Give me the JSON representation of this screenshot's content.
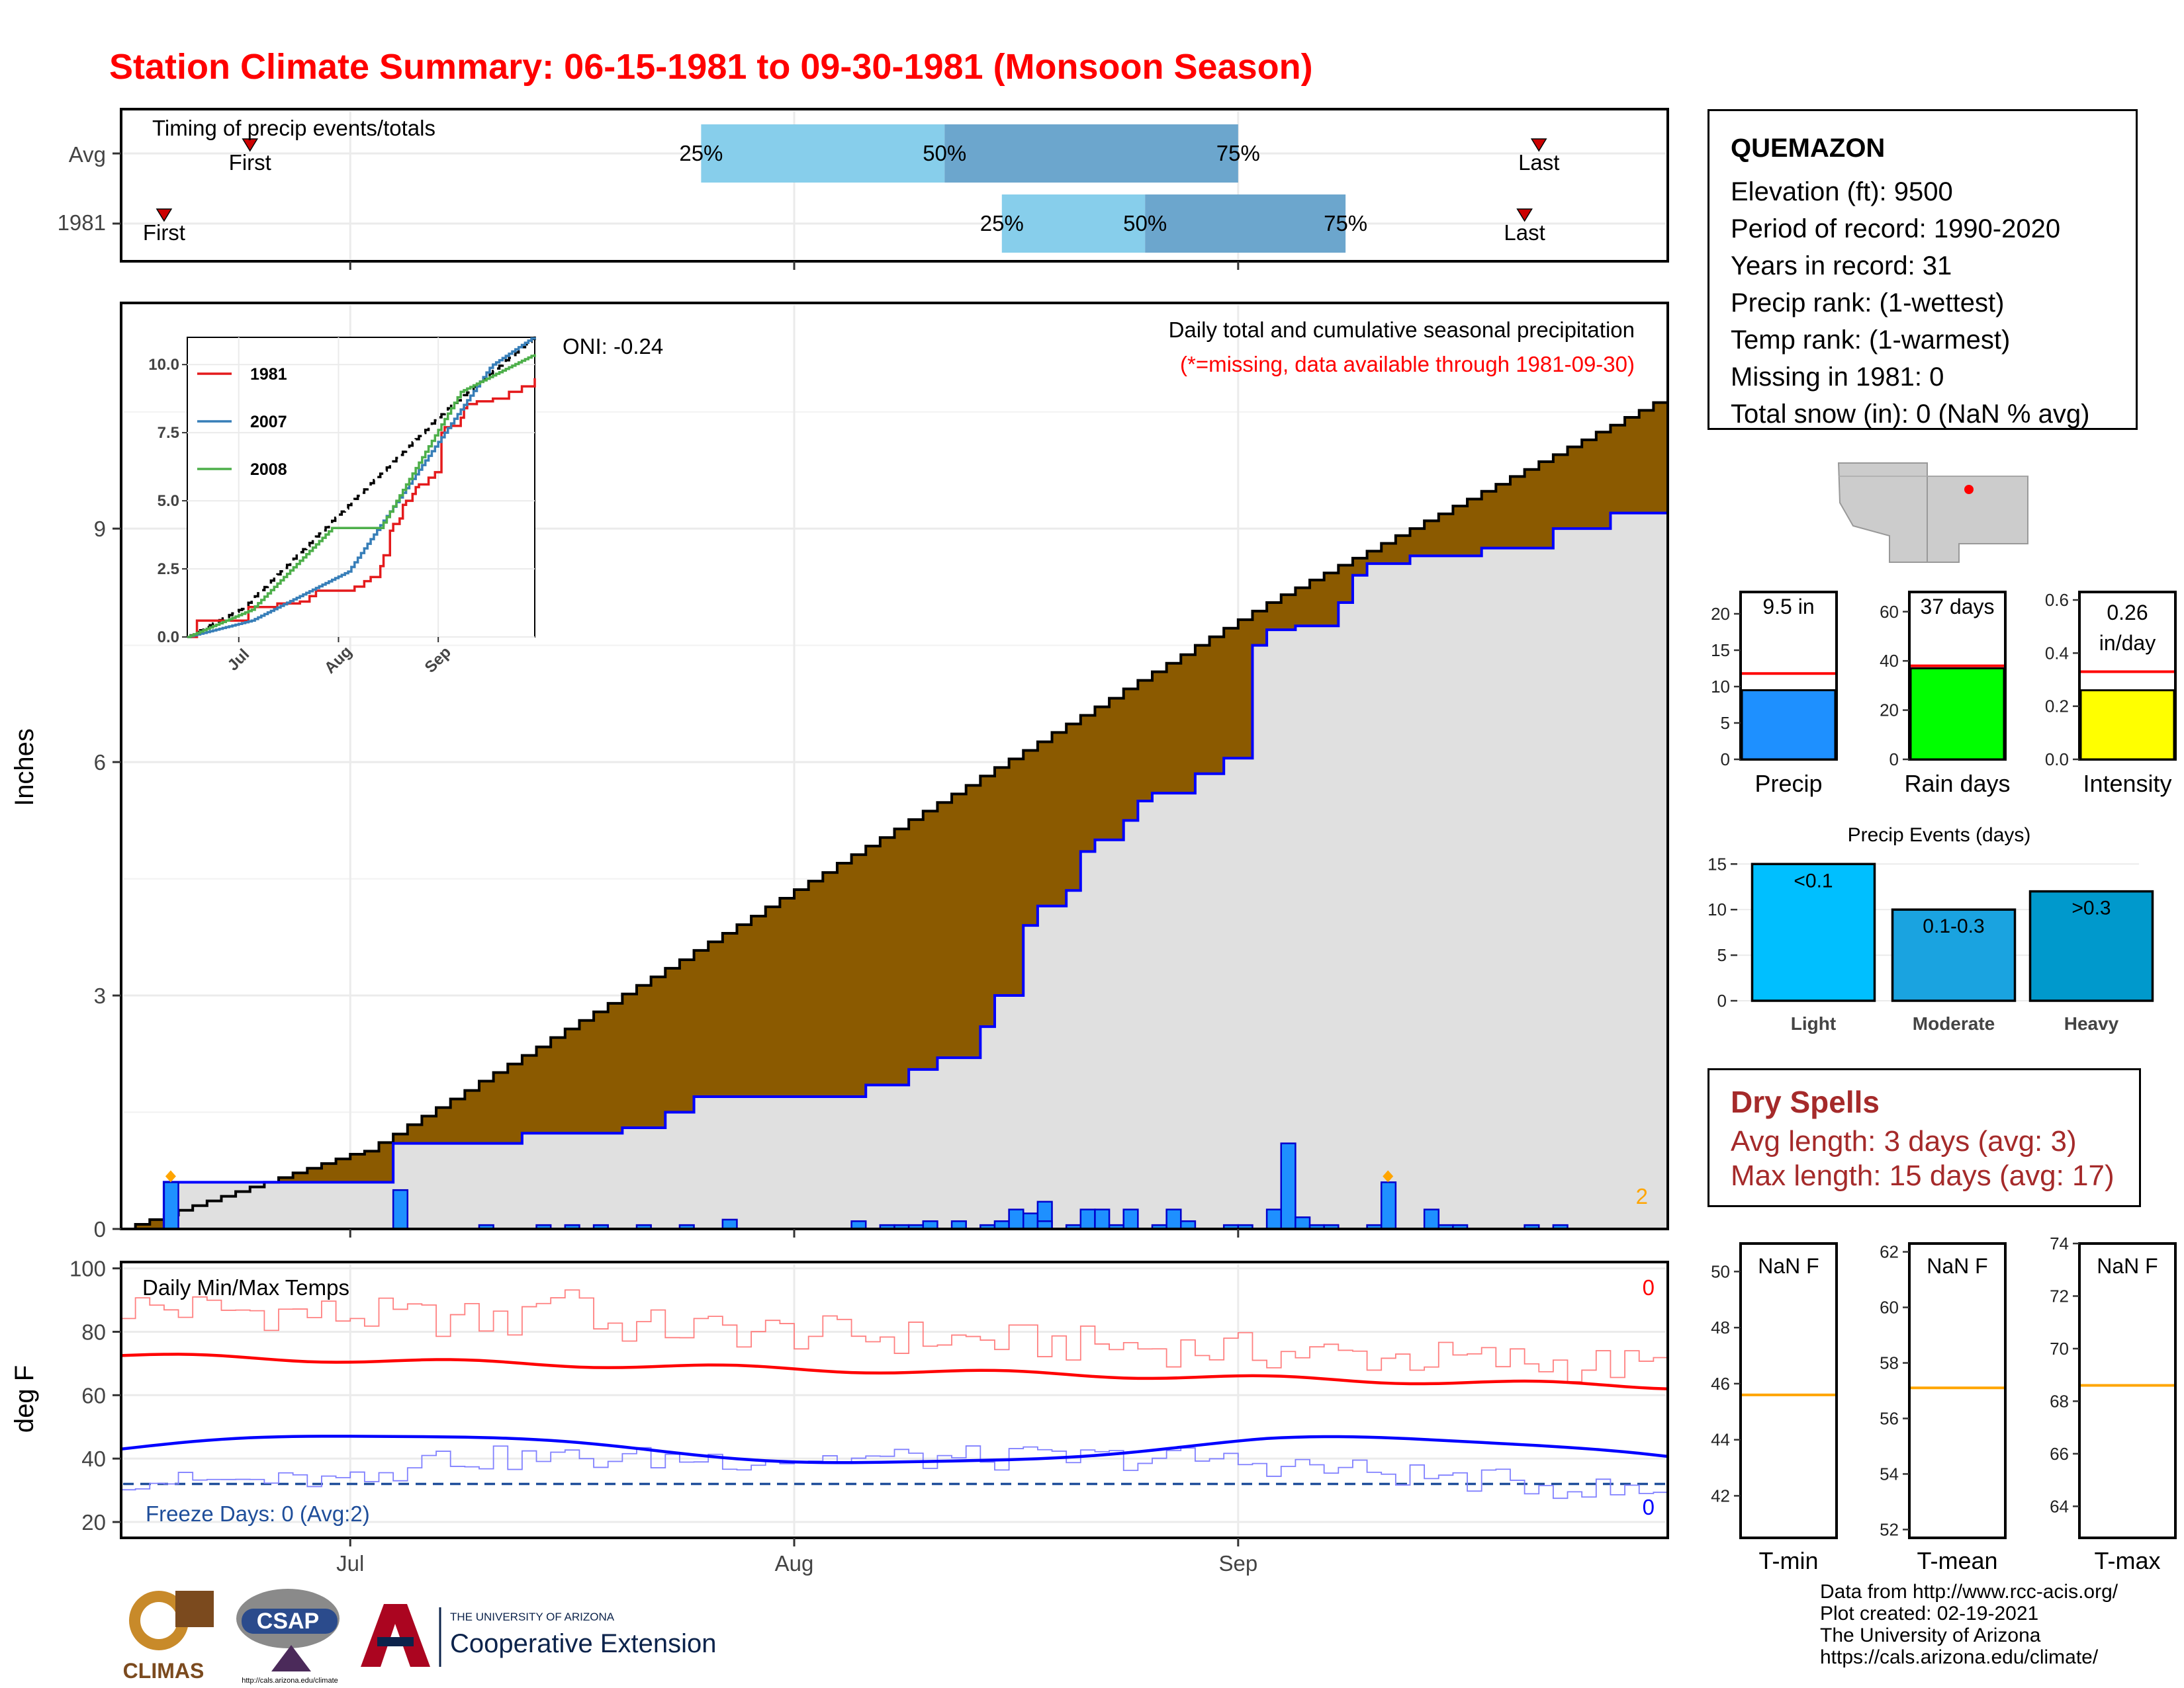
{
  "title": "Station Climate Summary: 06-15-1981 to 09-30-1981 (Monsoon Season)",
  "station": {
    "name": "QUEMAZON",
    "elevation": "Elevation (ft): 9500",
    "period": "Period of record: 1990-2020",
    "years": "Years in record: 31",
    "precip_rank": "Precip rank:  (1-wettest)",
    "temp_rank": "Temp rank:  (1-warmest)",
    "missing": "Missing in 1981: 0",
    "snow": "Total snow (in): 0 (NaN % avg)"
  },
  "timing": {
    "label": "Timing of precip events/totals",
    "rows": [
      "Avg",
      "1981"
    ],
    "avg": {
      "first_day": 9,
      "last_day": 99,
      "p25": 40.5,
      "p50": 57.5,
      "p75": 78
    },
    "year": {
      "first_day": 3,
      "last_day": 98,
      "p25": 61.5,
      "p50": 71.5,
      "p75": 85.5
    },
    "p25_label": "25%",
    "p50_label": "50%",
    "p75_label": "75%",
    "first_label": "First",
    "last_label": "Last"
  },
  "precip_panel": {
    "title": "Daily total and cumulative seasonal precipitation",
    "subtitle": "(*=missing, data available through 1981-09-30)",
    "oni": "ONI: -0.24",
    "ylabel": "Inches",
    "count_label": "2",
    "ymin": 0,
    "ymax": 11.9
  },
  "x_axis": {
    "labels": [
      "Jul",
      "Aug",
      "Sep"
    ],
    "days": [
      16,
      47,
      78
    ]
  },
  "inset": {
    "series": [
      {
        "name": "1981",
        "color": "#e41a1c"
      },
      {
        "name": "2007",
        "color": "#377eb8"
      },
      {
        "name": "2008",
        "color": "#4daf4a"
      }
    ],
    "yticks": [
      "0.0",
      "2.5",
      "5.0",
      "7.5",
      "10.0"
    ],
    "xticks": [
      "Jul",
      "Aug",
      "Sep"
    ]
  },
  "temp_panel": {
    "title": "Daily Min/Max Temps",
    "ylabel": "deg F",
    "freeze": "Freeze Days: 0 (Avg:2)",
    "max_count": "0",
    "min_count": "0",
    "yticks": [
      "20",
      "40",
      "60",
      "80",
      "100"
    ]
  },
  "summary_bars": [
    {
      "name": "Precip",
      "value_label": "9.5 in",
      "value": 9.5,
      "avg": 11.8,
      "ymax": 23,
      "ticks": [
        "0",
        "5",
        "10",
        "15",
        "20"
      ],
      "tickvals": [
        0,
        5,
        10,
        15,
        20
      ],
      "color": "#1e90ff"
    },
    {
      "name": "Rain days",
      "value_label": "37 days",
      "value": 37,
      "avg": 38,
      "ymax": 68,
      "ticks": [
        "0",
        "20",
        "40",
        "60"
      ],
      "tickvals": [
        0,
        20,
        40,
        60
      ],
      "color": "#00ff00"
    },
    {
      "name": "Intensity",
      "value_label": "0.26 in/day",
      "value": 0.26,
      "avg": 0.33,
      "ymax": 0.63,
      "ticks": [
        "0.0",
        "0.2",
        "0.4",
        "0.6"
      ],
      "tickvals": [
        0,
        0.2,
        0.4,
        0.6
      ],
      "color": "#ffff00"
    }
  ],
  "precip_events": {
    "title": "Precip Events (days)",
    "categories": [
      "Light",
      "Moderate",
      "Heavy"
    ],
    "labels": [
      "<0.1",
      "0.1-0.3",
      ">0.3"
    ],
    "values": [
      15,
      10,
      12
    ],
    "colors": [
      "#00bfff",
      "#1aa3e0",
      "#0099cc"
    ],
    "yticks": [
      "0",
      "5",
      "10",
      "15"
    ]
  },
  "dry_spells": {
    "title": "Dry Spells",
    "avg": "Avg length: 3 days (avg: 3)",
    "max": "Max length: 15 days (avg: 17)"
  },
  "temp_bars": [
    {
      "name": "T-min",
      "label": "NaN F",
      "avg": 45.6,
      "ymin": 40.5,
      "ymax": 51,
      "ticks": [
        "42",
        "44",
        "46",
        "48",
        "50"
      ],
      "tickvals": [
        42,
        44,
        46,
        48,
        50
      ]
    },
    {
      "name": "T-mean",
      "label": "NaN F",
      "avg": 57.1,
      "ymin": 51.7,
      "ymax": 62.3,
      "ticks": [
        "52",
        "54",
        "56",
        "58",
        "60",
        "62"
      ],
      "tickvals": [
        52,
        54,
        56,
        58,
        60,
        62
      ]
    },
    {
      "name": "T-max",
      "label": "NaN F",
      "avg": 68.6,
      "ymin": 62.8,
      "ymax": 74,
      "ticks": [
        "64",
        "66",
        "68",
        "70",
        "72",
        "74"
      ],
      "tickvals": [
        64,
        66,
        68,
        70,
        72,
        74
      ]
    }
  ],
  "credits": [
    "Data from http://www.rcc-acis.org/",
    "Plot created: 02-19-2021",
    "The University of Arizona",
    "https://cals.arizona.edu/climate/"
  ],
  "logos": {
    "climas": "CLIMAS",
    "csap": "CSAP",
    "csap_url": "http://cals.arizona.edu/climate",
    "ua_top": "THE UNIVERSITY OF ARIZONA",
    "ua_bottom": "Cooperative Extension"
  },
  "colors": {
    "title": "#ff0000",
    "cumulative_avg": "#8b5a00",
    "below_avg": "#008000",
    "year_line": "#0000ff",
    "freeze": "#1f4e9a",
    "dry": "#a52a2a",
    "avg_line": "#ff0000"
  }
}
